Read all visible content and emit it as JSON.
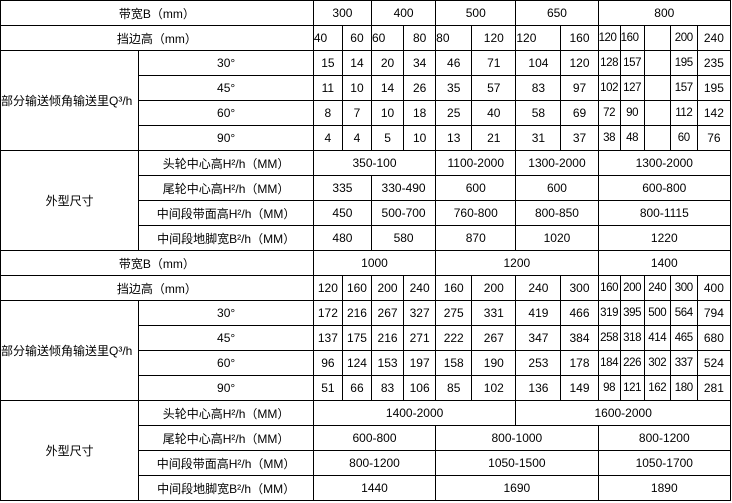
{
  "sections": [
    {
      "belt_width_label": "带宽B（mm）",
      "belt_widths": [
        "300",
        "400",
        "500",
        "650",
        "800"
      ],
      "edge_height_label": "挡边高（mm）",
      "edge_heights": [
        "40",
        "60",
        "60",
        "80",
        "80",
        "120",
        "120",
        "160",
        "120",
        "160",
        "",
        "200",
        "240"
      ],
      "flow_label": "部分输送倾角输送里Q³/h",
      "angles": [
        {
          "angle": "30°",
          "values": [
            "15",
            "14",
            "20",
            "34",
            "46",
            "71",
            "104",
            "120",
            "128",
            "157",
            "",
            "195",
            "235"
          ]
        },
        {
          "angle": "45°",
          "values": [
            "11",
            "10",
            "14",
            "26",
            "35",
            "57",
            "83",
            "97",
            "102",
            "127",
            "",
            "157",
            "195"
          ]
        },
        {
          "angle": "60°",
          "values": [
            "8",
            "7",
            "10",
            "18",
            "25",
            "40",
            "58",
            "69",
            "72",
            "90",
            "",
            "112",
            "142"
          ]
        },
        {
          "angle": "90°",
          "values": [
            "4",
            "4",
            "5",
            "10",
            "13",
            "21",
            "31",
            "37",
            "38",
            "48",
            "",
            "60",
            "76"
          ]
        }
      ],
      "dims_label": "外型尺寸",
      "dims": [
        {
          "label": "头轮中心高H²/h（MM）",
          "values": [
            "350-100",
            "1100-2000",
            "1300-2000",
            "1300-2000"
          ]
        },
        {
          "label": "尾轮中心高H²/h（MM）",
          "values": [
            "335",
            "330-490",
            "600",
            "600",
            "600-800"
          ]
        },
        {
          "label": "中间段带面高H²/h（MM）",
          "values": [
            "450",
            "500-700",
            "760-800",
            "800-850",
            "800-1115"
          ]
        },
        {
          "label": "中间段地脚宽B²/h（MM）",
          "values": [
            "480",
            "580",
            "870",
            "1020",
            "1220"
          ]
        }
      ]
    },
    {
      "belt_width_label": "带宽B（mm）",
      "belt_widths": [
        "1000",
        "1200",
        "1400"
      ],
      "edge_height_label": "挡边高（mm）",
      "edge_heights": [
        "120",
        "160",
        "200",
        "240",
        "160",
        "200",
        "240",
        "300",
        "160",
        "200",
        "240",
        "300",
        "400"
      ],
      "flow_label": "部分输送倾角输送里Q³/h",
      "angles": [
        {
          "angle": "30°",
          "values": [
            "172",
            "216",
            "267",
            "327",
            "275",
            "331",
            "419",
            "466",
            "319",
            "395",
            "500",
            "564",
            "794"
          ]
        },
        {
          "angle": "45°",
          "values": [
            "137",
            "175",
            "216",
            "271",
            "222",
            "267",
            "347",
            "384",
            "258",
            "318",
            "414",
            "465",
            "680"
          ]
        },
        {
          "angle": "60°",
          "values": [
            "96",
            "124",
            "153",
            "197",
            "158",
            "190",
            "253",
            "178",
            "184",
            "226",
            "302",
            "337",
            "524"
          ]
        },
        {
          "angle": "90°",
          "values": [
            "51",
            "66",
            "83",
            "106",
            "85",
            "102",
            "136",
            "149",
            "98",
            "121",
            "162",
            "180",
            "281"
          ]
        }
      ],
      "dims_label": "外型尺寸",
      "dims": [
        {
          "label": "头轮中心高H²/h（MM）",
          "values": [
            "1400-2000",
            "1600-2000"
          ]
        },
        {
          "label": "尾轮中心高H²/h（MM）",
          "values": [
            "600-800",
            "800-1000",
            "800-1200"
          ]
        },
        {
          "label": "中间段带面高H²/h（MM）",
          "values": [
            "800-1200",
            "1050-1500",
            "1050-1700"
          ]
        },
        {
          "label": "中间段地脚宽B²/h（MM）",
          "values": [
            "1440",
            "1690",
            "1890"
          ]
        }
      ]
    }
  ]
}
